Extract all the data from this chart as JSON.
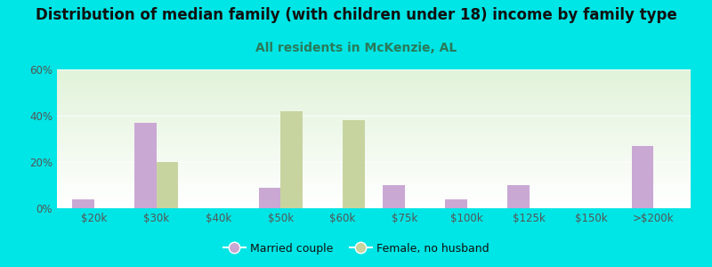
{
  "title": "Distribution of median family (with children under 18) income by family type",
  "subtitle": "All residents in McKenzie, AL",
  "categories": [
    "$20k",
    "$30k",
    "$40k",
    "$50k",
    "$60k",
    "$75k",
    "$100k",
    "$125k",
    "$150k",
    ">$200k"
  ],
  "married_couple": [
    4,
    37,
    0,
    9,
    0,
    10,
    4,
    10,
    0,
    27
  ],
  "female_no_husband": [
    0,
    20,
    0,
    42,
    38,
    0,
    0,
    0,
    0,
    0
  ],
  "married_color": "#c9a8d4",
  "female_color": "#c8d4a0",
  "background_outer": "#00e5e5",
  "title_color": "#111111",
  "subtitle_color": "#2a7a5a",
  "axis_label_color": "#555555",
  "legend_married": "Married couple",
  "legend_female": "Female, no husband",
  "ylim": [
    0,
    60
  ],
  "yticks": [
    0,
    20,
    40,
    60
  ],
  "ytick_labels": [
    "0%",
    "20%",
    "40%",
    "60%"
  ],
  "bar_width": 0.35,
  "title_fontsize": 12,
  "subtitle_fontsize": 10,
  "tick_fontsize": 8.5,
  "legend_fontsize": 9
}
